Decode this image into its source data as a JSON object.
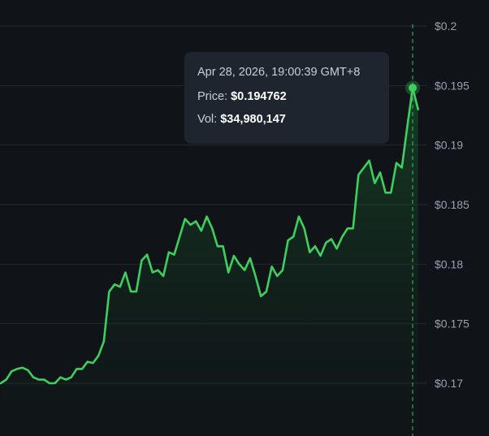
{
  "chart_data": {
    "type": "area",
    "x_axis": "time",
    "y_axis_side": "right",
    "ylim": [
      0.1665,
      0.2015
    ],
    "y_ticks": [
      0.2,
      0.195,
      0.19,
      0.185,
      0.18,
      0.175,
      0.17
    ],
    "y_tick_labels": [
      "$0.2",
      "$0.195",
      "$0.19",
      "$0.185",
      "$0.18",
      "$0.175",
      "$0.17"
    ],
    "grid": true,
    "line_color": "#3ecf5f",
    "values": [
      0.17,
      0.1703,
      0.171,
      0.1712,
      0.1713,
      0.1711,
      0.1705,
      0.1703,
      0.1703,
      0.17,
      0.17,
      0.1705,
      0.1703,
      0.1705,
      0.1712,
      0.1712,
      0.1718,
      0.1717,
      0.1723,
      0.1735,
      0.1777,
      0.1783,
      0.1781,
      0.1793,
      0.1777,
      0.1777,
      0.1803,
      0.1808,
      0.1793,
      0.1795,
      0.179,
      0.181,
      0.1808,
      0.1823,
      0.1838,
      0.1833,
      0.1836,
      0.1828,
      0.184,
      0.183,
      0.1815,
      0.1815,
      0.1793,
      0.1807,
      0.18,
      0.1795,
      0.1805,
      0.179,
      0.1773,
      0.1777,
      0.1798,
      0.179,
      0.1795,
      0.182,
      0.1823,
      0.184,
      0.183,
      0.181,
      0.1815,
      0.1807,
      0.1818,
      0.1821,
      0.1813,
      0.1823,
      0.183,
      0.183,
      0.1875,
      0.1881,
      0.1887,
      0.1868,
      0.1877,
      0.186,
      0.186,
      0.1885,
      0.1881,
      0.1915,
      0.1948,
      0.193
    ],
    "highlight_index": 76
  },
  "tooltip": {
    "timestamp": "Apr 28, 2026, 19:00:39 GMT+8",
    "price_label": "Price:",
    "price_value": "$0.194762",
    "vol_label": "Vol:",
    "vol_value": "$34,980,147"
  }
}
